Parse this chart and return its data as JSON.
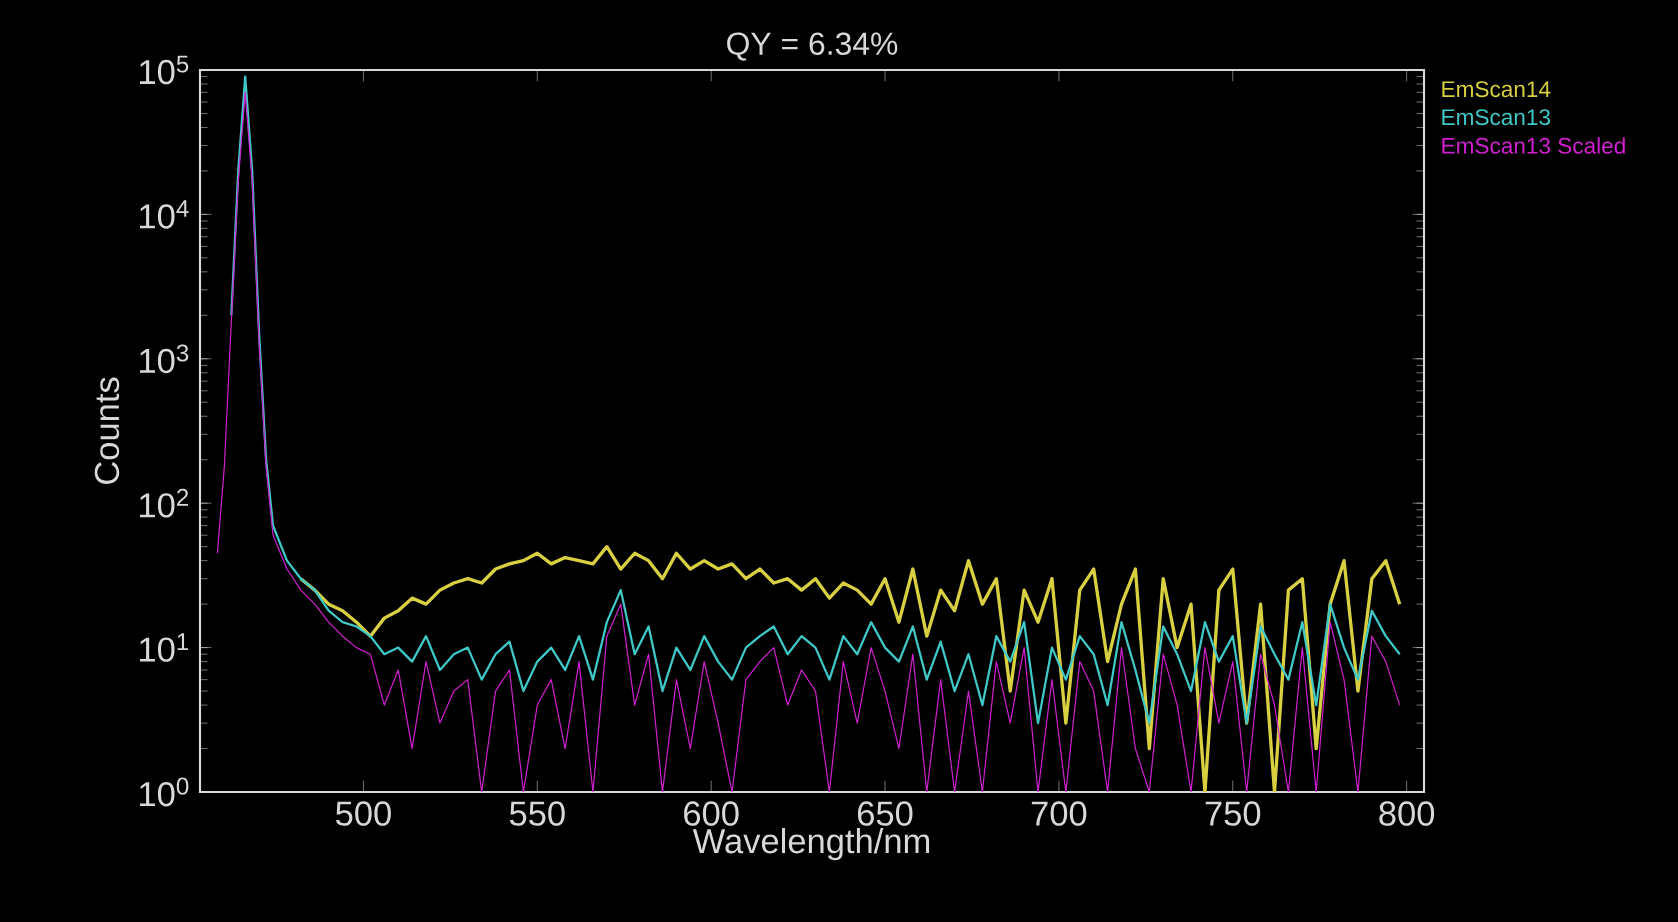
{
  "chart_data": {
    "type": "line",
    "title": "QY = 6.34%",
    "xlabel": "Wavelength/nm",
    "ylabel": "Counts",
    "x": [
      458,
      460,
      462,
      464,
      466,
      468,
      470,
      472,
      474,
      478,
      482,
      486,
      490,
      494,
      498,
      502,
      506,
      510,
      514,
      518,
      522,
      526,
      530,
      534,
      538,
      542,
      546,
      550,
      554,
      558,
      562,
      566,
      570,
      574,
      578,
      582,
      586,
      590,
      594,
      598,
      602,
      606,
      610,
      614,
      618,
      622,
      626,
      630,
      634,
      638,
      642,
      646,
      650,
      654,
      658,
      662,
      666,
      670,
      674,
      678,
      682,
      686,
      690,
      694,
      698,
      702,
      706,
      710,
      714,
      718,
      722,
      726,
      730,
      734,
      738,
      742,
      746,
      750,
      754,
      758,
      762,
      766,
      770,
      774,
      778,
      782,
      786,
      790,
      794,
      798
    ],
    "series": [
      {
        "name": "EmScan14",
        "color": "#d8d040",
        "values": [
          null,
          null,
          null,
          null,
          null,
          null,
          null,
          null,
          null,
          null,
          30,
          25,
          20,
          18,
          15,
          12,
          16,
          18,
          22,
          20,
          25,
          28,
          30,
          28,
          35,
          38,
          40,
          45,
          38,
          42,
          40,
          38,
          50,
          35,
          45,
          40,
          30,
          45,
          35,
          40,
          35,
          38,
          30,
          35,
          28,
          30,
          25,
          30,
          22,
          28,
          25,
          20,
          30,
          15,
          35,
          12,
          25,
          18,
          40,
          20,
          30,
          5,
          25,
          15,
          30,
          3,
          25,
          35,
          8,
          20,
          35,
          2,
          30,
          10,
          20,
          1,
          25,
          35,
          3,
          20,
          1,
          25,
          30,
          2,
          20,
          40,
          5,
          30,
          40,
          20
        ]
      },
      {
        "name": "EmScan13",
        "color": "#40c8c8",
        "values": [
          null,
          null,
          2000,
          20000,
          90000,
          20000,
          1500,
          200,
          70,
          40,
          30,
          25,
          18,
          15,
          14,
          12,
          9,
          10,
          8,
          12,
          7,
          9,
          10,
          6,
          9,
          11,
          5,
          8,
          10,
          7,
          12,
          6,
          15,
          25,
          9,
          14,
          5,
          10,
          7,
          12,
          8,
          6,
          10,
          12,
          14,
          9,
          12,
          10,
          6,
          12,
          9,
          15,
          10,
          8,
          14,
          6,
          11,
          5,
          9,
          4,
          12,
          8,
          15,
          3,
          10,
          6,
          12,
          9,
          4,
          15,
          7,
          3,
          14,
          9,
          5,
          15,
          8,
          12,
          3,
          14,
          9,
          6,
          15,
          4,
          20,
          10,
          6,
          18,
          12,
          9
        ]
      },
      {
        "name": "EmScan13 Scaled",
        "color": "#d020d0",
        "values": [
          45,
          180,
          1800,
          17000,
          70000,
          17000,
          1300,
          180,
          60,
          35,
          25,
          20,
          15,
          12,
          10,
          9,
          4,
          7,
          2,
          8,
          3,
          5,
          6,
          1,
          5,
          7,
          1,
          4,
          6,
          2,
          8,
          1,
          12,
          20,
          4,
          9,
          1,
          6,
          2,
          8,
          3,
          1,
          6,
          8,
          10,
          4,
          7,
          5,
          1,
          8,
          3,
          10,
          5,
          2,
          9,
          1,
          6,
          1,
          5,
          1,
          8,
          3,
          10,
          1,
          6,
          1,
          8,
          5,
          1,
          10,
          2,
          1,
          9,
          4,
          1,
          10,
          3,
          8,
          1,
          9,
          4,
          1,
          10,
          1,
          15,
          6,
          1,
          12,
          8,
          4
        ]
      }
    ],
    "xlim": [
      453,
      805
    ],
    "ylim": [
      1,
      100000
    ],
    "xticks": [
      500,
      550,
      600,
      650,
      700,
      750,
      800
    ],
    "yticks": [
      {
        "value": 1,
        "label": "10$^{0}$"
      },
      {
        "value": 10,
        "label": "10$^{1}$"
      },
      {
        "value": 100,
        "label": "10$^{2}$"
      },
      {
        "value": 1000,
        "label": "10$^{3}$"
      },
      {
        "value": 10000,
        "label": "10$^{4}$"
      },
      {
        "value": 100000,
        "label": "10$^{5}$"
      }
    ],
    "log": "y",
    "legend": "top right",
    "marker": "none",
    "line_style": "solid"
  }
}
